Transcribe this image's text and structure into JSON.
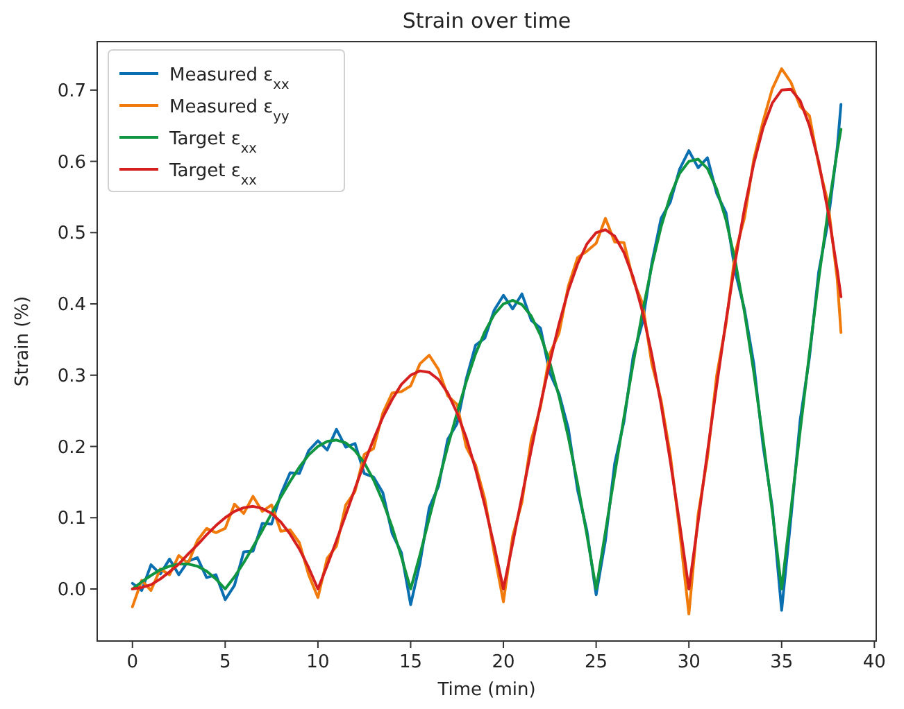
{
  "chart_data": {
    "type": "line",
    "title": "Strain over time",
    "xlabel": "Time (min)",
    "ylabel": "Strain (%)",
    "x": [
      0,
      0.5,
      1,
      1.5,
      2,
      2.5,
      3,
      3.5,
      4,
      4.5,
      5,
      5.5,
      6,
      6.5,
      7,
      7.5,
      8,
      8.5,
      9,
      9.5,
      10,
      10.5,
      11,
      11.5,
      12,
      12.5,
      13,
      13.5,
      14,
      14.5,
      15,
      15.5,
      16,
      16.5,
      17,
      17.5,
      18,
      18.5,
      19,
      19.5,
      20,
      20.5,
      21,
      21.5,
      22,
      22.5,
      23,
      23.5,
      24,
      24.5,
      25,
      25.5,
      26,
      26.5,
      27,
      27.5,
      28,
      28.5,
      29,
      29.5,
      30,
      30.5,
      31,
      31.5,
      32,
      32.5,
      33,
      33.5,
      34,
      34.5,
      35,
      35.5,
      36,
      36.5,
      37,
      37.5,
      38,
      38.2
    ],
    "series": [
      {
        "name": "Measured ε$_{xx}$",
        "color": "#0a6fb0",
        "values": [
          0.008,
          -0.002,
          0.034,
          0.021,
          0.042,
          0.02,
          0.039,
          0.044,
          0.016,
          0.02,
          -0.015,
          0.005,
          0.052,
          0.053,
          0.092,
          0.091,
          0.133,
          0.163,
          0.162,
          0.194,
          0.208,
          0.195,
          0.224,
          0.199,
          0.204,
          0.162,
          0.157,
          0.135,
          0.078,
          0.051,
          -0.022,
          0.036,
          0.114,
          0.144,
          0.21,
          0.232,
          0.295,
          0.342,
          0.352,
          0.391,
          0.412,
          0.393,
          0.414,
          0.377,
          0.366,
          0.303,
          0.274,
          0.225,
          0.139,
          0.082,
          -0.008,
          0.068,
          0.176,
          0.235,
          0.327,
          0.374,
          0.457,
          0.52,
          0.543,
          0.589,
          0.615,
          0.591,
          0.605,
          0.555,
          0.528,
          0.445,
          0.392,
          0.316,
          0.201,
          0.114,
          -0.03,
          0.099,
          0.237,
          0.325,
          0.445,
          0.515,
          0.619,
          0.68
        ]
      },
      {
        "name": "Measured ε$_{yy}$",
        "color": "#f07b0b",
        "values": [
          -0.025,
          0.012,
          -0.002,
          0.028,
          0.02,
          0.047,
          0.036,
          0.068,
          0.085,
          0.079,
          0.085,
          0.119,
          0.106,
          0.13,
          0.109,
          0.118,
          0.081,
          0.083,
          0.065,
          0.02,
          -0.012,
          0.043,
          0.06,
          0.118,
          0.137,
          0.189,
          0.197,
          0.247,
          0.275,
          0.277,
          0.285,
          0.316,
          0.328,
          0.308,
          0.271,
          0.259,
          0.199,
          0.174,
          0.126,
          0.051,
          -0.018,
          0.074,
          0.122,
          0.209,
          0.255,
          0.33,
          0.359,
          0.425,
          0.465,
          0.474,
          0.485,
          0.52,
          0.487,
          0.486,
          0.433,
          0.401,
          0.316,
          0.265,
          0.188,
          0.082,
          -0.035,
          0.105,
          0.184,
          0.3,
          0.372,
          0.472,
          0.521,
          0.603,
          0.656,
          0.702,
          0.73,
          0.711,
          0.677,
          0.664,
          0.595,
          0.542,
          0.434,
          0.36
        ]
      },
      {
        "name": "Target ε$_{xx}$",
        "color": "#109540",
        "values": [
          0,
          0.01,
          0.019,
          0.027,
          0.032,
          0.035,
          0.035,
          0.032,
          0.025,
          0.014,
          0,
          0.017,
          0.037,
          0.059,
          0.082,
          0.106,
          0.129,
          0.151,
          0.171,
          0.188,
          0.2,
          0.207,
          0.209,
          0.205,
          0.194,
          0.177,
          0.153,
          0.123,
          0.087,
          0.045,
          0,
          0.048,
          0.099,
          0.15,
          0.2,
          0.247,
          0.291,
          0.33,
          0.361,
          0.385,
          0.4,
          0.405,
          0.399,
          0.383,
          0.356,
          0.318,
          0.27,
          0.213,
          0.148,
          0.076,
          0,
          0.08,
          0.161,
          0.241,
          0.317,
          0.389,
          0.453,
          0.508,
          0.552,
          0.583,
          0.6,
          0.603,
          0.59,
          0.561,
          0.518,
          0.46,
          0.388,
          0.304,
          0.21,
          0.108,
          0,
          0.111,
          0.222,
          0.331,
          0.435,
          0.53,
          0.615,
          0.645
        ]
      },
      {
        "name": "Target ε$_{xx}$",
        "color": "#d62020",
        "values": [
          0,
          0.002,
          0.006,
          0.014,
          0.024,
          0.035,
          0.049,
          0.062,
          0.076,
          0.089,
          0.1,
          0.109,
          0.114,
          0.116,
          0.113,
          0.106,
          0.094,
          0.077,
          0.056,
          0.03,
          0,
          0.033,
          0.068,
          0.104,
          0.141,
          0.177,
          0.21,
          0.241,
          0.266,
          0.287,
          0.3,
          0.306,
          0.304,
          0.294,
          0.275,
          0.247,
          0.212,
          0.168,
          0.117,
          0.061,
          0,
          0.064,
          0.13,
          0.195,
          0.259,
          0.318,
          0.372,
          0.419,
          0.456,
          0.484,
          0.5,
          0.504,
          0.495,
          0.472,
          0.437,
          0.389,
          0.329,
          0.259,
          0.179,
          0.092,
          0,
          0.095,
          0.192,
          0.286,
          0.376,
          0.46,
          0.534,
          0.597,
          0.647,
          0.682,
          0.7,
          0.701,
          0.685,
          0.65,
          0.599,
          0.53,
          0.447,
          0.41
        ]
      }
    ],
    "xlim": [
      -1.9,
      40.1
    ],
    "ylim": [
      -0.073,
      0.768
    ],
    "xticks": [
      0,
      5,
      10,
      15,
      20,
      25,
      30,
      35,
      40
    ],
    "yticks": [
      {
        "value": 0,
        "label": "0.0"
      },
      0.1,
      0.2,
      0.3,
      0.4,
      0.5,
      0.6,
      0.7
    ],
    "legend": "top left",
    "grid": false
  }
}
